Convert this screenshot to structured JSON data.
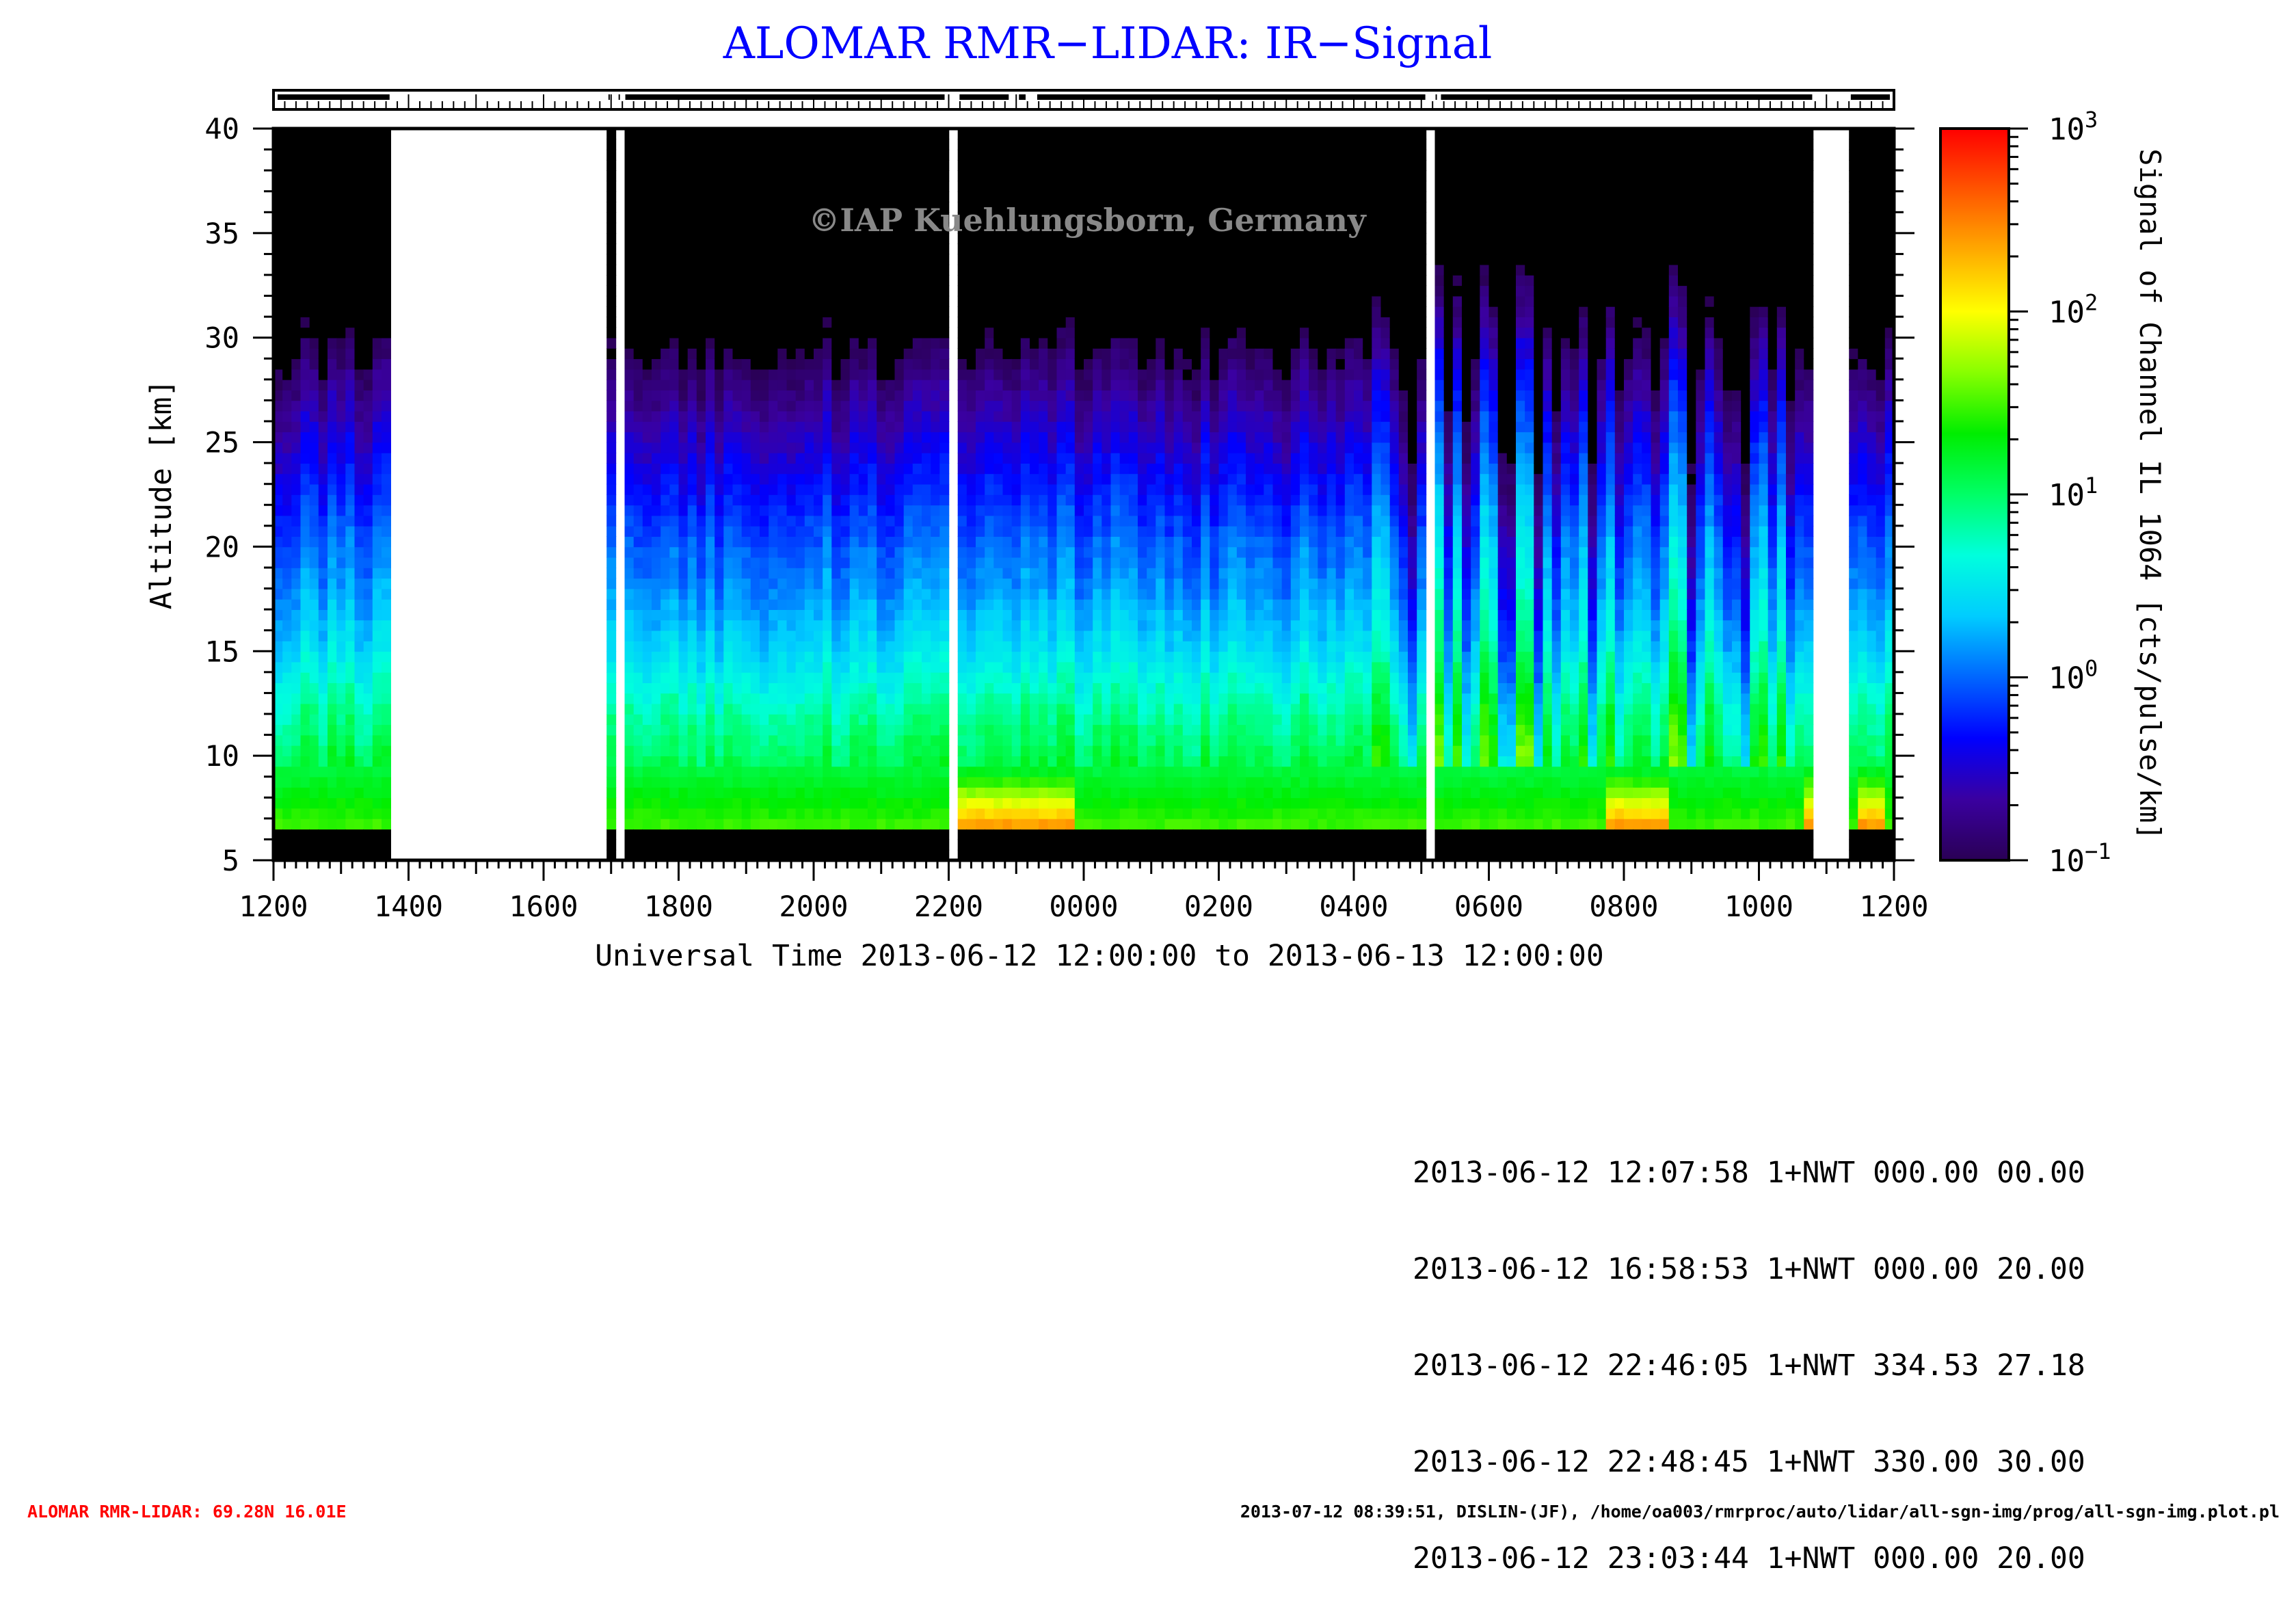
{
  "title": "ALOMAR RMR−LIDAR: IR−Signal",
  "watermark": "©IAP Kuehlungsborn, Germany",
  "colors": {
    "title": "#0000ff",
    "footer_left": "#ff0000",
    "no_data": "#ffffff",
    "below_range": "#000000"
  },
  "chart_data": {
    "type": "heatmap",
    "title": "ALOMAR RMR−LIDAR: IR−Signal",
    "xlabel": "Universal Time 2013-06-12 12:00:00 to 2013-06-13 12:00:00",
    "ylabel": "Altitude [km]",
    "x_range_hours_ut": [
      12,
      36
    ],
    "x_ticks": [
      "1200",
      "1400",
      "1600",
      "1800",
      "2000",
      "2200",
      "0000",
      "0200",
      "0400",
      "0600",
      "0800",
      "1000",
      "1200"
    ],
    "ylim": [
      5,
      40
    ],
    "y_ticks": [
      5,
      10,
      15,
      20,
      25,
      30,
      35,
      40
    ],
    "colorbar": {
      "label": "Signal of Channel IL 1064 [cts/pulse/km]",
      "scale": "log",
      "range": [
        0.1,
        1000
      ],
      "tick_bases": [
        "10",
        "10",
        "10",
        "10",
        "10"
      ],
      "tick_exponents": [
        "−1",
        "0",
        "1",
        "2",
        "3"
      ],
      "colormap": [
        "#2a0055",
        "#3a00a0",
        "#0000ff",
        "#0066ff",
        "#00ccff",
        "#00ffdd",
        "#00ff66",
        "#00ee00",
        "#88ff00",
        "#ffff00",
        "#ffaa00",
        "#ff5500",
        "#ff0000"
      ]
    },
    "data_gaps_hours_ut": [
      [
        13.78,
        16.9
      ],
      [
        17.02,
        17.05
      ],
      [
        17.12,
        17.15
      ],
      [
        22.0,
        22.1
      ],
      [
        22.95,
        22.98
      ],
      [
        23.2,
        23.25
      ],
      [
        29.12,
        29.15
      ],
      [
        29.2,
        29.23
      ],
      [
        34.85,
        35.3
      ]
    ],
    "lower_cutoff_km": 6.5,
    "profile_log10_signal_vs_altitude": {
      "altitude_km": [
        5,
        6.5,
        8,
        10,
        12,
        15,
        18,
        20,
        23,
        26,
        29,
        32,
        40
      ],
      "log10_signal": [
        1.5,
        1.5,
        1.3,
        1.05,
        0.85,
        0.45,
        0.15,
        0.0,
        -0.3,
        -0.6,
        -0.95,
        -1.4,
        -2.5
      ]
    },
    "enhanced_signal_hours_ut": [
      [
        22.0,
        23.8
      ],
      [
        31.8,
        32.6
      ],
      [
        34.7,
        35.0
      ],
      [
        35.5,
        35.8
      ]
    ]
  },
  "log_entries": [
    "2013-06-12 12:07:58 1+NWT 000.00 00.00",
    "2013-06-12 16:58:53 1+NWT 000.00 20.00",
    "2013-06-12 22:46:05 1+NWT 334.53 27.18",
    "2013-06-12 22:48:45 1+NWT 330.00 30.00",
    "2013-06-12 23:03:44 1+NWT 000.00 20.00"
  ],
  "footer_left": "ALOMAR RMR-LIDAR: 69.28N 16.01E",
  "footer_right": "2013-07-12 08:39:51, DISLIN-(JF), /home/oa003/rmrproc/auto/lidar/all-sgn-img/prog/all-sgn-img.plot.pl"
}
